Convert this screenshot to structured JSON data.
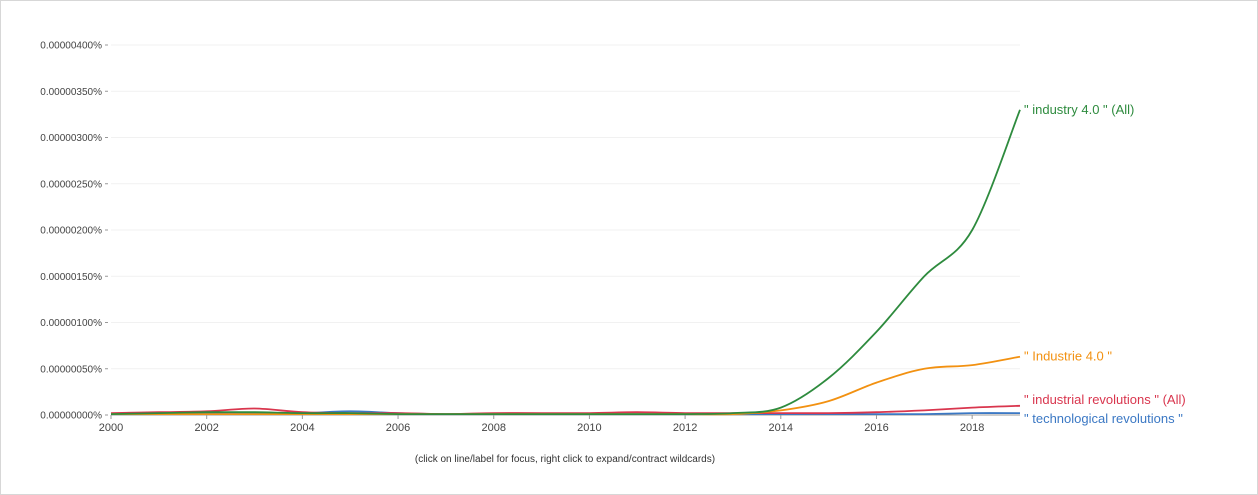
{
  "chart_data": {
    "type": "line",
    "title": "",
    "xlabel": "",
    "ylabel": "",
    "xlim": [
      2000,
      2019
    ],
    "ylim": [
      0,
      4e-06
    ],
    "x_ticks": [
      2000,
      2002,
      2004,
      2006,
      2008,
      2010,
      2012,
      2014,
      2016,
      2018
    ],
    "x_tick_labels": [
      "2000",
      "2002",
      "2004",
      "2006",
      "2008",
      "2010",
      "2012",
      "2014",
      "2016",
      "2018"
    ],
    "y_ticks": [
      0,
      5e-07,
      1e-06,
      1.5e-06,
      2e-06,
      2.5e-06,
      3e-06,
      3.5e-06,
      4e-06
    ],
    "y_tick_labels": [
      "0.00000000%",
      "0.00000050%",
      "0.00000100%",
      "0.00000150%",
      "0.00000200%",
      "0.00000250%",
      "0.00000300%",
      "0.00000350%",
      "0.00000400%"
    ],
    "grid": true,
    "x": [
      2000,
      2001,
      2002,
      2003,
      2004,
      2005,
      2006,
      2007,
      2008,
      2009,
      2010,
      2011,
      2012,
      2013,
      2014,
      2015,
      2016,
      2017,
      2018,
      2019
    ],
    "series": [
      {
        "name": "\" industry 4.0 \" (All)",
        "color": "#2e8b3e",
        "values": [
          1e-08,
          2e-08,
          3e-08,
          3e-08,
          2e-08,
          2e-08,
          1e-08,
          1e-08,
          1e-08,
          1e-08,
          1e-08,
          1e-08,
          1e-08,
          2e-08,
          8e-08,
          4e-07,
          9e-07,
          1.5e-06,
          2e-06,
          3.3e-06
        ]
      },
      {
        "name": "\" Industrie 4.0 \"",
        "color": "#f29111",
        "values": [
          1e-08,
          1e-08,
          1e-08,
          1e-08,
          1e-08,
          1e-08,
          1e-08,
          1e-08,
          1e-08,
          1e-08,
          1e-08,
          1e-08,
          1e-08,
          1e-08,
          5e-08,
          1.5e-07,
          3.5e-07,
          5e-07,
          5.4e-07,
          6.3e-07
        ]
      },
      {
        "name": "\" industrial revolutions \" (All)",
        "color": "#d9364e",
        "values": [
          2e-08,
          3e-08,
          4e-08,
          7e-08,
          3e-08,
          2e-08,
          2e-08,
          1e-08,
          2e-08,
          2e-08,
          2e-08,
          3e-08,
          2e-08,
          2e-08,
          2e-08,
          2e-08,
          3e-08,
          5e-08,
          8e-08,
          1e-07
        ]
      },
      {
        "name": "\" technological revolutions \"",
        "color": "#3b78c4",
        "values": [
          1e-08,
          1e-08,
          2e-08,
          2e-08,
          2e-08,
          4e-08,
          2e-08,
          1e-08,
          1e-08,
          1e-08,
          1e-08,
          1e-08,
          1e-08,
          1e-08,
          1e-08,
          1e-08,
          1e-08,
          1e-08,
          2e-08,
          2e-08
        ]
      }
    ],
    "legend_placement": "right-end-labels",
    "note": "(click on line/label for focus, right click to expand/contract wildcards)"
  }
}
